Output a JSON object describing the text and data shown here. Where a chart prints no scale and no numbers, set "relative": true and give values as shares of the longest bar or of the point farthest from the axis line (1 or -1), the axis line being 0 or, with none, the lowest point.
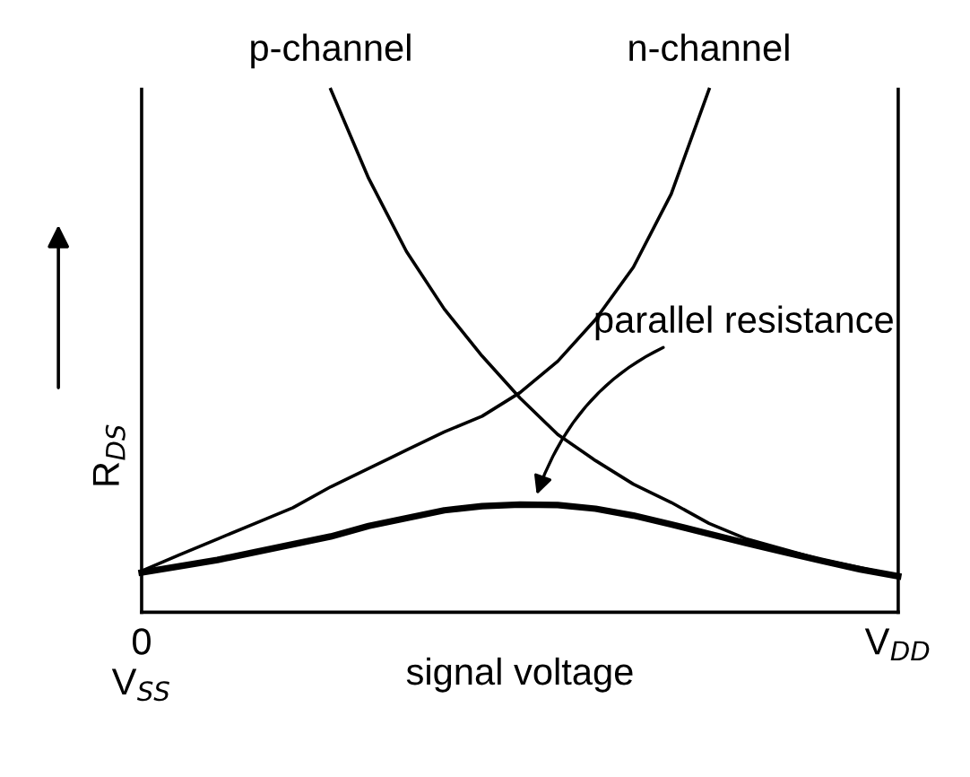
{
  "chart_data": {
    "type": "line",
    "relative": true,
    "xlabel": "signal voltage",
    "ylabel": "R$_{DS}$",
    "categories": [
      "0\nV$_{SS}$",
      null,
      null,
      null,
      null,
      null,
      null,
      null,
      null,
      null,
      null,
      null,
      null,
      null,
      null,
      null,
      null,
      null,
      null,
      null,
      "V$_{DD}$"
    ],
    "marker": "none",
    "line_style": "solid",
    "series": [
      {
        "name": "p-channel",
        "color": "#000000",
        "values": [
          null,
          null,
          null,
          null,
          null,
          1.0,
          0.83,
          0.69,
          0.58,
          0.49,
          0.41,
          0.34,
          0.29,
          0.245,
          0.21,
          0.17,
          0.14,
          0.12,
          0.1,
          0.085,
          0.069
        ]
      },
      {
        "name": "n-channel",
        "color": "#000000",
        "values": [
          0.079,
          0.11,
          0.14,
          0.17,
          0.2,
          0.24,
          0.275,
          0.31,
          0.345,
          0.375,
          0.42,
          0.48,
          0.56,
          0.66,
          0.8,
          1.0,
          null,
          null,
          null,
          null,
          null
        ]
      },
      {
        "name": "parallel resistance",
        "color": "#000000",
        "values": [
          0.076,
          0.088,
          0.1,
          0.115,
          0.13,
          0.145,
          0.165,
          0.18,
          0.195,
          0.203,
          0.206,
          0.205,
          0.198,
          0.185,
          0.168,
          0.15,
          0.132,
          0.115,
          0.098,
          0.082,
          0.069
        ]
      }
    ]
  }
}
